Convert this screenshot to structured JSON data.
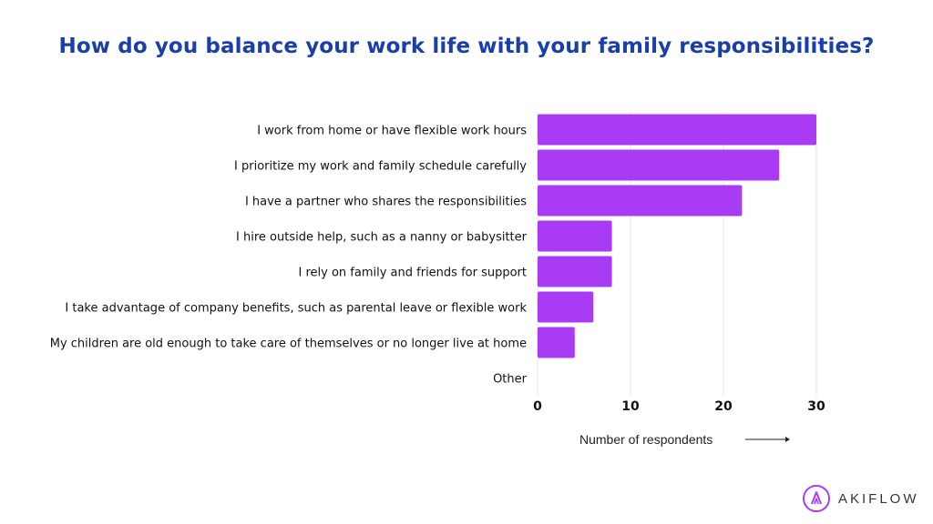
{
  "chart_data": {
    "type": "bar",
    "orientation": "horizontal",
    "title": "How do you balance your work life with your family responsibilities?",
    "xlabel": "Number of respondents",
    "ylabel": "",
    "categories": [
      "I work from home or have flexible work hours",
      "I prioritize my work and family schedule carefully",
      "I have a partner who shares the responsibilities",
      "I hire outside help, such as a nanny or babysitter",
      "I rely on family and friends for support",
      "I take advantage of company benefits, such as parental leave or flexible work",
      "My children are old enough to take care of themselves or no longer live at home",
      "Other"
    ],
    "values": [
      30,
      26,
      22,
      8,
      8,
      6,
      4,
      0
    ],
    "xlim": [
      0,
      30
    ],
    "xticks": [
      "0",
      "10",
      "20",
      "30"
    ],
    "grid": true,
    "bar_color": "#a93bf5",
    "title_color": "#1a3fa8"
  },
  "brand": {
    "name": "AKIFLOW",
    "icon": "akiflow-logo-icon",
    "accent": "#a93bf5"
  }
}
